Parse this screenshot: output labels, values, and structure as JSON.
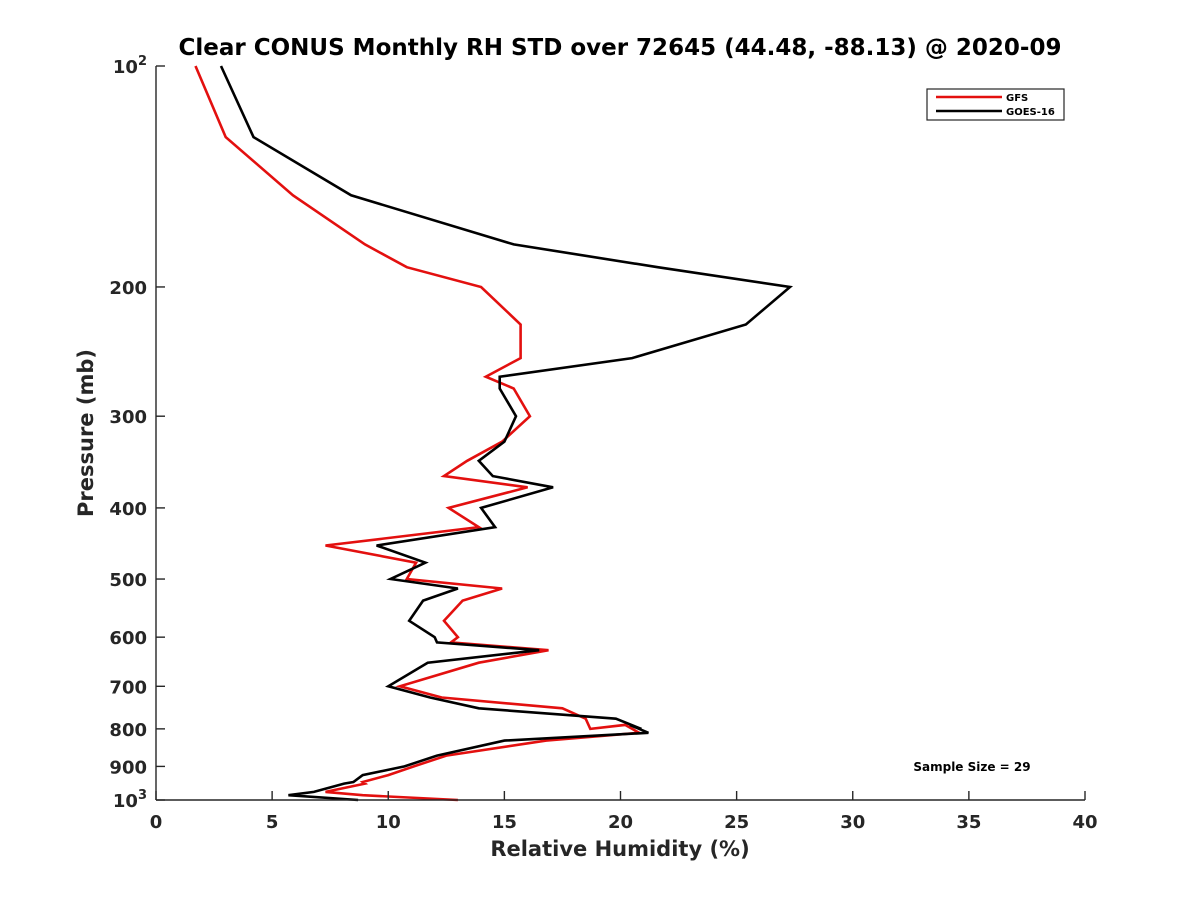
{
  "chart_data": {
    "type": "line",
    "title": "Clear CONUS Monthly RH STD over 72645 (44.48, -88.13) @ 2020-09",
    "xlabel": "Relative Humidity (%)",
    "ylabel": "Pressure (mb)",
    "xlim": [
      0,
      40
    ],
    "ylim": [
      100,
      1000
    ],
    "yscale": "log",
    "y_reversed": true,
    "grid": false,
    "x_ticks": [
      0,
      5,
      10,
      15,
      20,
      25,
      30,
      35,
      40
    ],
    "x_tick_labels": [
      "0",
      "5",
      "10",
      "15",
      "20",
      "25",
      "30",
      "35",
      "40"
    ],
    "y_ticks": [
      100,
      200,
      300,
      400,
      500,
      600,
      700,
      800,
      900,
      1000
    ],
    "y_tick_labels": [
      {
        "base": "10",
        "sup": "2"
      },
      {
        "base": "200",
        "sup": ""
      },
      {
        "base": "300",
        "sup": ""
      },
      {
        "base": "400",
        "sup": ""
      },
      {
        "base": "500",
        "sup": ""
      },
      {
        "base": "600",
        "sup": ""
      },
      {
        "base": "700",
        "sup": ""
      },
      {
        "base": "800",
        "sup": ""
      },
      {
        "base": "900",
        "sup": ""
      },
      {
        "base": "10",
        "sup": "3"
      }
    ],
    "legend_position": "top-right",
    "annotation": "Sample Size = 29",
    "series": [
      {
        "name": "GFS",
        "color": "#e3100f",
        "points": [
          [
            1.7,
            100
          ],
          [
            3.0,
            125
          ],
          [
            5.9,
            150
          ],
          [
            9.0,
            175
          ],
          [
            10.8,
            188
          ],
          [
            14.0,
            200
          ],
          [
            15.7,
            225
          ],
          [
            15.7,
            250
          ],
          [
            14.2,
            265
          ],
          [
            15.4,
            275
          ],
          [
            16.1,
            300
          ],
          [
            14.9,
            325
          ],
          [
            13.4,
            345
          ],
          [
            12.4,
            362
          ],
          [
            16.0,
            375
          ],
          [
            12.6,
            400
          ],
          [
            13.9,
            425
          ],
          [
            7.3,
            450
          ],
          [
            11.2,
            475
          ],
          [
            10.8,
            500
          ],
          [
            14.9,
            515
          ],
          [
            13.2,
            535
          ],
          [
            12.4,
            570
          ],
          [
            13.0,
            600
          ],
          [
            12.7,
            610
          ],
          [
            16.9,
            625
          ],
          [
            13.9,
            650
          ],
          [
            10.5,
            700
          ],
          [
            12.3,
            725
          ],
          [
            17.5,
            750
          ],
          [
            18.5,
            775
          ],
          [
            18.7,
            800
          ],
          [
            20.2,
            790
          ],
          [
            20.8,
            810
          ],
          [
            16.8,
            830
          ],
          [
            12.5,
            870
          ],
          [
            11.1,
            900
          ],
          [
            10.0,
            925
          ],
          [
            8.9,
            945
          ],
          [
            9.0,
            950
          ],
          [
            7.3,
            975
          ],
          [
            8.9,
            985
          ],
          [
            13.0,
            1000
          ]
        ]
      },
      {
        "name": "GOES-16",
        "color": "#000000",
        "points": [
          [
            2.8,
            100
          ],
          [
            4.2,
            125
          ],
          [
            8.4,
            150
          ],
          [
            15.4,
            175
          ],
          [
            21.6,
            188
          ],
          [
            27.3,
            200
          ],
          [
            25.4,
            225
          ],
          [
            20.5,
            250
          ],
          [
            14.8,
            265
          ],
          [
            14.8,
            275
          ],
          [
            15.5,
            300
          ],
          [
            15.0,
            325
          ],
          [
            13.9,
            345
          ],
          [
            14.5,
            362
          ],
          [
            17.1,
            375
          ],
          [
            14.0,
            400
          ],
          [
            14.6,
            425
          ],
          [
            9.5,
            450
          ],
          [
            11.6,
            475
          ],
          [
            10.1,
            500
          ],
          [
            13.0,
            515
          ],
          [
            11.5,
            535
          ],
          [
            10.9,
            570
          ],
          [
            12.0,
            600
          ],
          [
            12.1,
            610
          ],
          [
            16.5,
            625
          ],
          [
            11.7,
            650
          ],
          [
            10.0,
            700
          ],
          [
            11.8,
            725
          ],
          [
            13.9,
            750
          ],
          [
            19.8,
            775
          ],
          [
            20.9,
            800
          ],
          [
            20.4,
            790
          ],
          [
            21.2,
            810
          ],
          [
            15.0,
            830
          ],
          [
            12.1,
            870
          ],
          [
            10.7,
            900
          ],
          [
            8.9,
            925
          ],
          [
            8.5,
            945
          ],
          [
            8.1,
            950
          ],
          [
            6.8,
            975
          ],
          [
            5.7,
            985
          ],
          [
            8.7,
            1000
          ]
        ]
      }
    ]
  }
}
